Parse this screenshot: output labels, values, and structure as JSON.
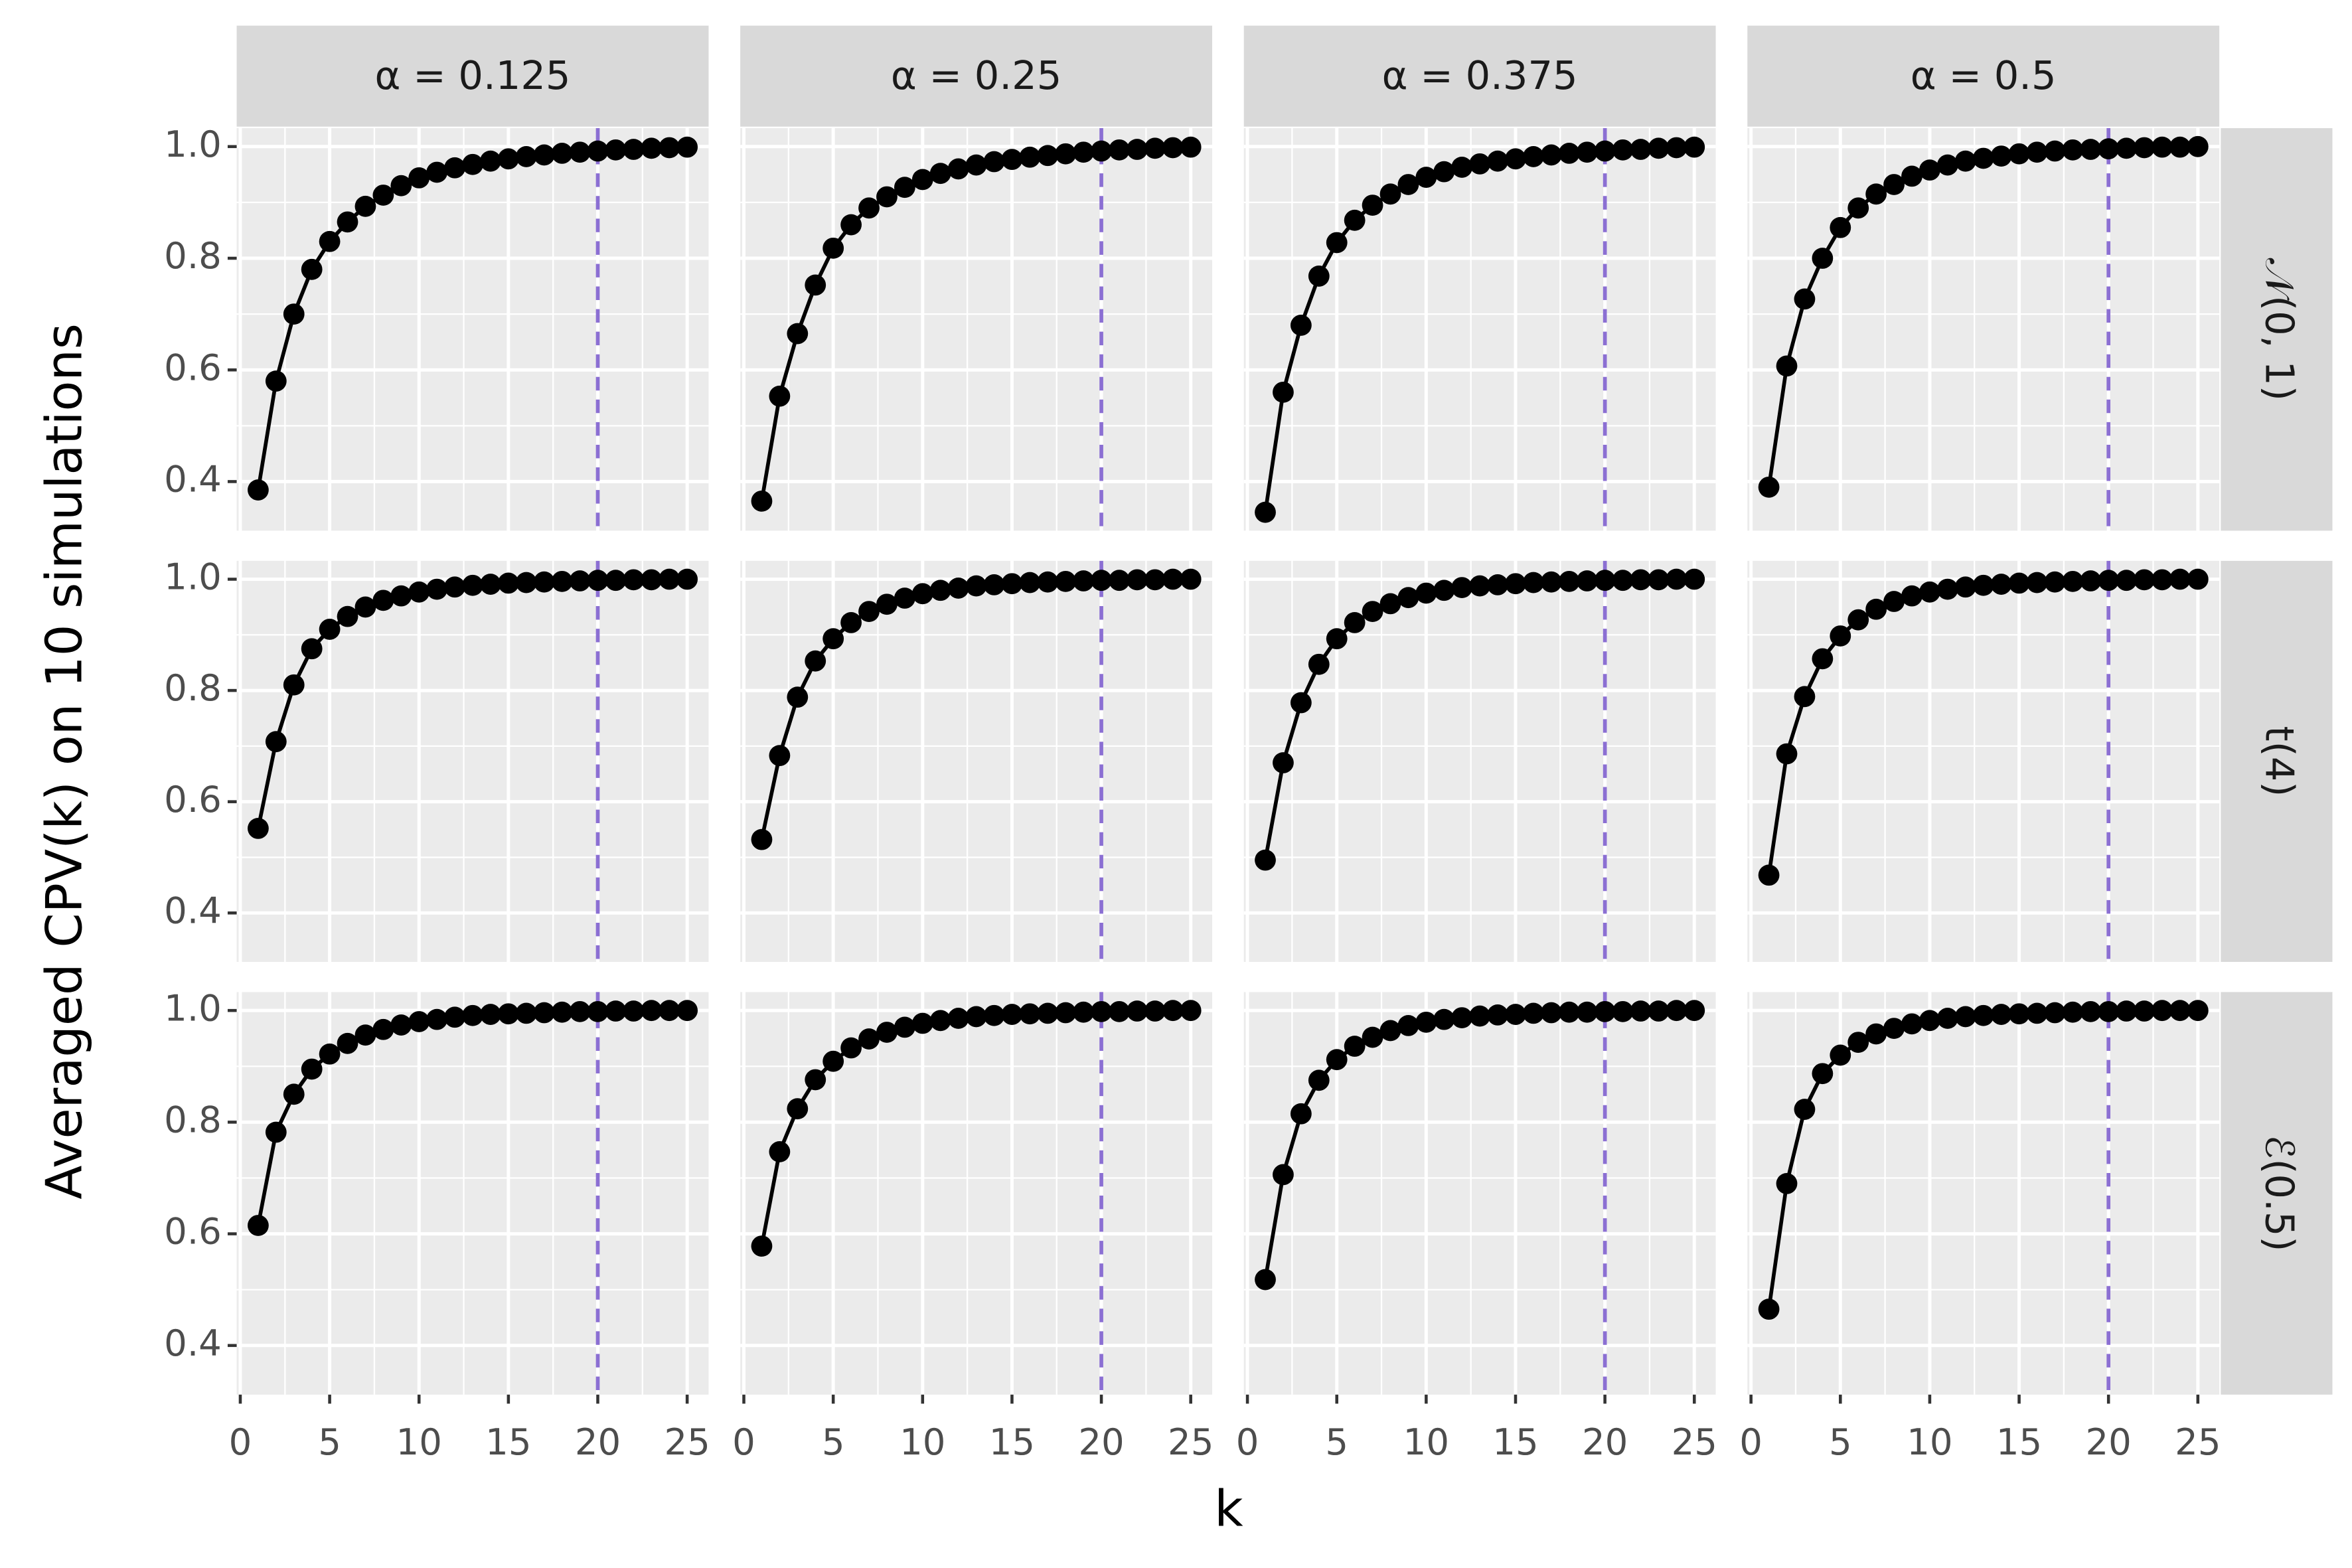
{
  "chart_data": {
    "type": "line",
    "xlabel": "k",
    "ylabel": "Averaged CPV(k) on 10 simulations",
    "columns": [
      "α = 0.125",
      "α = 0.25",
      "α = 0.375",
      "α = 0.5"
    ],
    "rows": [
      "𝒩(0, 1)",
      "t(4)",
      "ℰ(0.5)"
    ],
    "x": [
      1,
      2,
      3,
      4,
      5,
      6,
      7,
      8,
      9,
      10,
      11,
      12,
      13,
      14,
      15,
      16,
      17,
      18,
      19,
      20,
      21,
      22,
      23,
      24,
      25
    ],
    "values": [
      [
        [
          0.385,
          0.58,
          0.7,
          0.78,
          0.83,
          0.865,
          0.893,
          0.913,
          0.93,
          0.944,
          0.954,
          0.962,
          0.968,
          0.974,
          0.978,
          0.982,
          0.985,
          0.988,
          0.99,
          0.992,
          0.994,
          0.995,
          0.997,
          0.998,
          0.999
        ],
        [
          0.365,
          0.553,
          0.665,
          0.752,
          0.818,
          0.86,
          0.89,
          0.91,
          0.927,
          0.941,
          0.952,
          0.96,
          0.967,
          0.973,
          0.977,
          0.981,
          0.984,
          0.987,
          0.99,
          0.992,
          0.994,
          0.995,
          0.997,
          0.998,
          0.999
        ],
        [
          0.345,
          0.56,
          0.68,
          0.768,
          0.828,
          0.868,
          0.895,
          0.915,
          0.932,
          0.945,
          0.955,
          0.963,
          0.969,
          0.974,
          0.978,
          0.982,
          0.985,
          0.988,
          0.99,
          0.992,
          0.994,
          0.995,
          0.997,
          0.998,
          0.999
        ],
        [
          0.39,
          0.607,
          0.727,
          0.8,
          0.855,
          0.89,
          0.915,
          0.932,
          0.947,
          0.958,
          0.967,
          0.974,
          0.979,
          0.983,
          0.987,
          0.99,
          0.992,
          0.994,
          0.995,
          0.996,
          0.997,
          0.998,
          0.999,
          0.999,
          1.0
        ]
      ],
      [
        [
          0.552,
          0.708,
          0.81,
          0.875,
          0.91,
          0.933,
          0.95,
          0.962,
          0.97,
          0.977,
          0.982,
          0.986,
          0.989,
          0.991,
          0.993,
          0.994,
          0.995,
          0.996,
          0.997,
          0.998,
          0.998,
          0.999,
          0.999,
          1.0,
          1.0
        ],
        [
          0.532,
          0.683,
          0.788,
          0.853,
          0.893,
          0.922,
          0.942,
          0.955,
          0.966,
          0.974,
          0.98,
          0.984,
          0.988,
          0.99,
          0.992,
          0.994,
          0.995,
          0.996,
          0.997,
          0.998,
          0.998,
          0.999,
          0.999,
          1.0,
          1.0
        ],
        [
          0.495,
          0.67,
          0.778,
          0.847,
          0.893,
          0.922,
          0.942,
          0.956,
          0.967,
          0.975,
          0.98,
          0.985,
          0.988,
          0.99,
          0.992,
          0.994,
          0.995,
          0.996,
          0.997,
          0.998,
          0.998,
          0.999,
          0.999,
          1.0,
          1.0
        ],
        [
          0.468,
          0.686,
          0.789,
          0.857,
          0.898,
          0.927,
          0.946,
          0.96,
          0.97,
          0.977,
          0.982,
          0.986,
          0.989,
          0.991,
          0.993,
          0.994,
          0.995,
          0.996,
          0.997,
          0.998,
          0.998,
          0.999,
          0.999,
          1.0,
          1.0
        ]
      ],
      [
        [
          0.615,
          0.782,
          0.85,
          0.895,
          0.922,
          0.941,
          0.956,
          0.966,
          0.974,
          0.98,
          0.984,
          0.988,
          0.991,
          0.993,
          0.994,
          0.995,
          0.996,
          0.997,
          0.998,
          0.998,
          0.999,
          0.999,
          1.0,
          1.0,
          1.0
        ],
        [
          0.578,
          0.747,
          0.824,
          0.876,
          0.909,
          0.933,
          0.949,
          0.961,
          0.97,
          0.977,
          0.982,
          0.986,
          0.989,
          0.991,
          0.993,
          0.994,
          0.995,
          0.996,
          0.997,
          0.998,
          0.998,
          0.999,
          0.999,
          1.0,
          1.0
        ],
        [
          0.518,
          0.706,
          0.815,
          0.875,
          0.912,
          0.936,
          0.952,
          0.964,
          0.973,
          0.979,
          0.984,
          0.987,
          0.99,
          0.992,
          0.993,
          0.995,
          0.996,
          0.997,
          0.997,
          0.998,
          0.998,
          0.999,
          0.999,
          1.0,
          1.0
        ],
        [
          0.465,
          0.69,
          0.823,
          0.887,
          0.92,
          0.943,
          0.958,
          0.968,
          0.976,
          0.982,
          0.986,
          0.989,
          0.991,
          0.993,
          0.994,
          0.995,
          0.996,
          0.997,
          0.998,
          0.998,
          0.999,
          0.999,
          1.0,
          1.0,
          1.0
        ]
      ]
    ],
    "color": "#000000",
    "vline": 20,
    "vline_color": "#8b6fd3",
    "xlim": [
      -0.2,
      26.2
    ],
    "xticks": [
      0,
      5,
      10,
      15,
      20,
      25
    ],
    "x_minor_ticks": [
      2.5,
      7.5,
      12.5,
      17.5,
      22.5
    ],
    "ylim": [
      0.312,
      1.033
    ],
    "yticks": [
      {
        "value": 0.4,
        "label": "0.4"
      },
      {
        "value": 0.6,
        "label": "0.6"
      },
      {
        "value": 0.8,
        "label": "0.8"
      },
      {
        "value": 1,
        "label": "1.0"
      }
    ],
    "y_minor_ticks": [
      0.5,
      0.7,
      0.9
    ],
    "grid": true
  }
}
